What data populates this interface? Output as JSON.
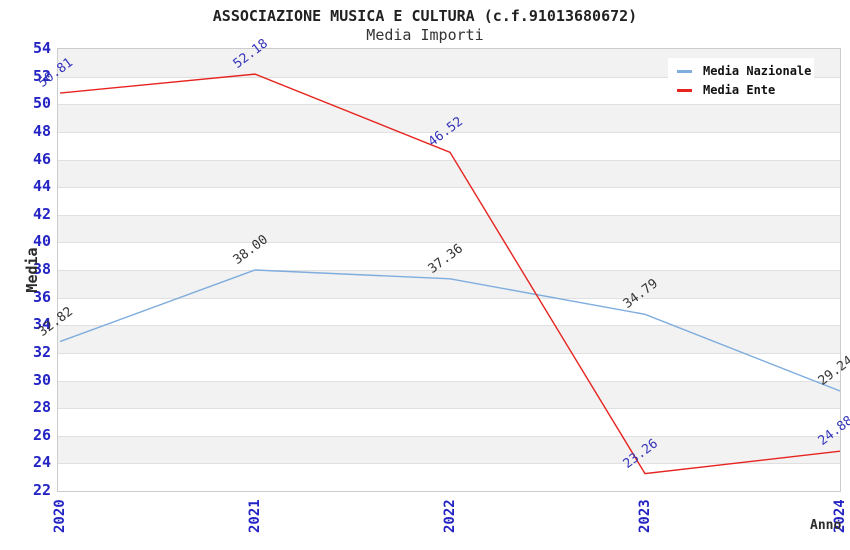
{
  "chart_data": {
    "type": "line",
    "title": "ASSOCIAZIONE MUSICA E CULTURA (c.f.91013680672)",
    "subtitle": "Media Importi",
    "xlabel": "Anno",
    "ylabel": "Media",
    "x": [
      "2020",
      "2021",
      "2022",
      "2023",
      "2024"
    ],
    "series": [
      {
        "name": "Media Nazionale",
        "color": "#7fadde",
        "label_color": "#333333",
        "values": [
          32.82,
          38.0,
          37.36,
          34.79,
          29.24
        ]
      },
      {
        "name": "Media Ente",
        "color": "#e62420",
        "label_color": "#3434bb",
        "values": [
          50.81,
          52.18,
          46.52,
          23.26,
          24.88
        ]
      }
    ],
    "ylim": [
      22,
      54
    ],
    "ytick_step": 2,
    "tick_label_color": "#2424c4",
    "value_label_decimals": 2,
    "grid": "horizontal gridlines with alternating gray bands",
    "legend_position": "top-right",
    "band_gray_color": "#f2f2f2"
  }
}
